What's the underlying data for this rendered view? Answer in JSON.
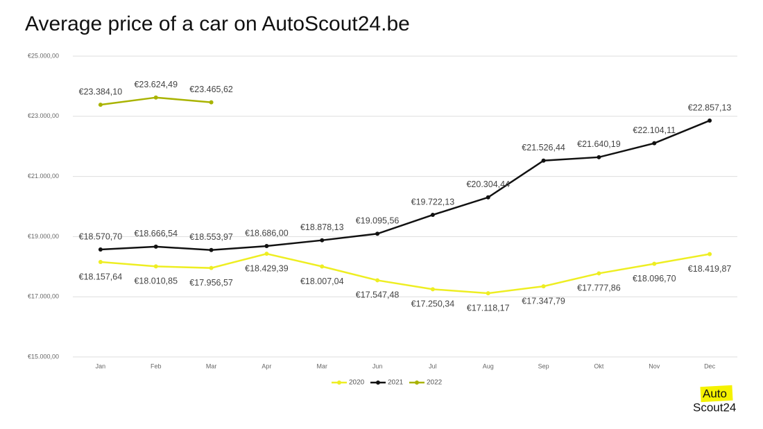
{
  "chart_data": {
    "type": "line",
    "title": "Average price of a car on AutoScout24.be",
    "categories": [
      "Jan",
      "Feb",
      "Mar",
      "Apr",
      "Mar",
      "Jun",
      "Jul",
      "Aug",
      "Sep",
      "Okt",
      "Nov",
      "Dec"
    ],
    "ylim": [
      15000,
      25000
    ],
    "yticks": [
      {
        "value": 15000,
        "label": "€15.000,00"
      },
      {
        "value": 17000,
        "label": "€17.000,00"
      },
      {
        "value": 19000,
        "label": "€19.000,00"
      },
      {
        "value": 21000,
        "label": "€21.000,00"
      },
      {
        "value": 23000,
        "label": "€23.000,00"
      },
      {
        "value": 25000,
        "label": "€25.000,00"
      }
    ],
    "grid": true,
    "legend": "bottom",
    "series": [
      {
        "name": "2020",
        "color": "#eeee22",
        "values": [
          18157.64,
          18010.85,
          17956.57,
          18429.39,
          18007.04,
          17547.48,
          17250.34,
          17118.17,
          17347.79,
          17777.86,
          18096.7,
          18419.87
        ],
        "value_labels": [
          "€18.157,64",
          "€18.010,85",
          "€17.956,57",
          "€18.429,39",
          "€18.007,04",
          "€17.547,48",
          "€17.250,34",
          "€17.118,17",
          "€17.347,79",
          "€17.777,86",
          "€18.096,70",
          "€18.419,87"
        ]
      },
      {
        "name": "2021",
        "color": "#111111",
        "values": [
          18570.7,
          18666.54,
          18553.97,
          18686.0,
          18878.13,
          19095.56,
          19722.13,
          20304.44,
          21526.44,
          21640.19,
          22104.11,
          22857.13
        ],
        "value_labels": [
          "€18.570,70",
          "€18.666,54",
          "€18.553,97",
          "€18.686,00",
          "€18.878,13",
          "€19.095,56",
          "€19.722,13",
          "€20.304,44",
          "€21.526,44",
          "€21.640,19",
          "€22.104,11",
          "€22.857,13"
        ]
      },
      {
        "name": "2022",
        "color": "#a9b300",
        "values": [
          23384.1,
          23624.49,
          23465.62,
          null,
          null,
          null,
          null,
          null,
          null,
          null,
          null,
          null
        ],
        "value_labels": [
          "€23.384,10",
          "€23.624,49",
          "€23.465,62",
          null,
          null,
          null,
          null,
          null,
          null,
          null,
          null,
          null
        ]
      }
    ]
  },
  "logo": {
    "line1": "Auto",
    "line2": "Scout24"
  }
}
